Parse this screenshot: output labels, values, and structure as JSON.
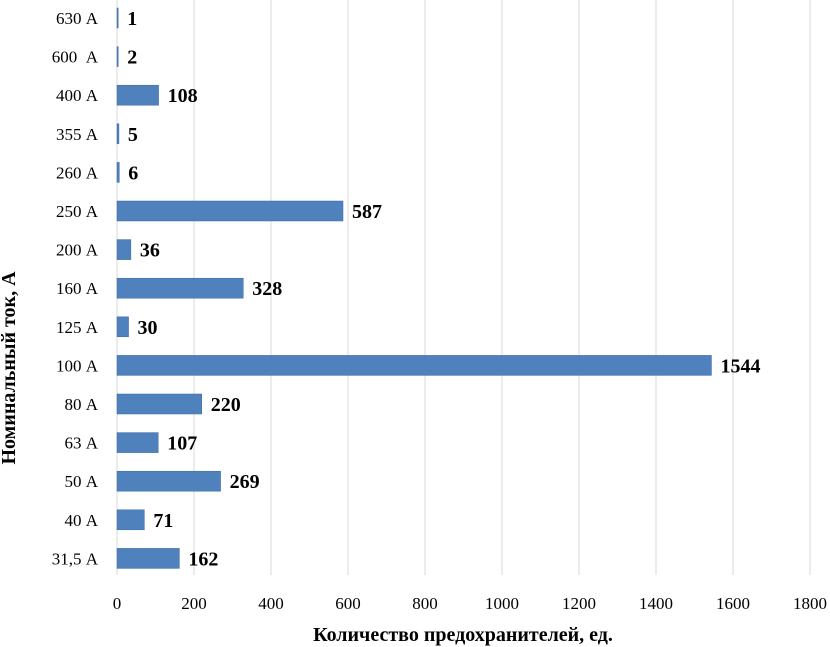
{
  "chart_data": {
    "type": "bar",
    "orientation": "horizontal",
    "title": "",
    "xlabel": "Количество предохранителей, ед.",
    "ylabel": "Номинальный ток, А",
    "xlim": [
      0,
      1800
    ],
    "x_ticks": [
      0,
      200,
      400,
      600,
      800,
      1000,
      1200,
      1400,
      1600,
      1800
    ],
    "grid": "vertical",
    "legend": "none",
    "bar_color": "#4F81BD",
    "categories": [
      "630 А",
      "600  А",
      "400 А",
      "355 А",
      "260 А",
      "250 А",
      "200 А",
      "160 А",
      "125 А",
      "100 А",
      "80 А",
      "63 А",
      "50 А",
      "40 А",
      "31,5 А"
    ],
    "values": [
      1,
      2,
      108,
      5,
      6,
      587,
      36,
      328,
      30,
      1544,
      220,
      107,
      269,
      71,
      162
    ],
    "data_labels": [
      "1",
      "2",
      "108",
      "5",
      "6",
      "587",
      "36",
      "328",
      "30",
      "1544",
      "220",
      "107",
      "269",
      "71",
      "162"
    ]
  }
}
